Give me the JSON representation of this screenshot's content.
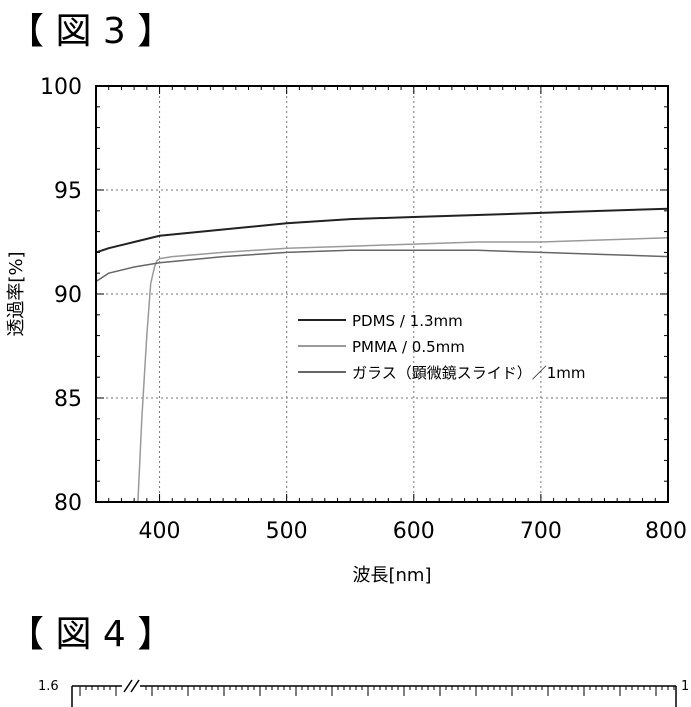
{
  "figures": [
    {
      "heading": "【 図 3 】"
    },
    {
      "heading": "【 図 4 】"
    }
  ],
  "chart_data": [
    {
      "type": "line",
      "title": "",
      "xlabel": "波長[nm]",
      "ylabel": "透過率[%]",
      "xlim": [
        350,
        800
      ],
      "ylim": [
        80,
        100
      ],
      "x_ticks": [
        400,
        500,
        600,
        700,
        800
      ],
      "y_ticks": [
        80,
        85,
        90,
        95,
        100
      ],
      "x_tick_labels": [
        "400",
        "500",
        "600",
        "700",
        "800"
      ],
      "y_tick_labels": [
        "80",
        "85",
        "90",
        "95",
        "100"
      ],
      "grid": true,
      "legend_position": "center",
      "series": [
        {
          "name": "PDMS / 1.3mm",
          "color": "#222222",
          "x": [
            350,
            360,
            380,
            400,
            450,
            500,
            550,
            600,
            650,
            700,
            750,
            800
          ],
          "y": [
            92.0,
            92.2,
            92.5,
            92.8,
            93.1,
            93.4,
            93.6,
            93.7,
            93.8,
            93.9,
            94.0,
            94.1
          ]
        },
        {
          "name": "PMMA / 0.5mm",
          "color": "#9a9a9a",
          "x": [
            383,
            386,
            390,
            393,
            396,
            398,
            400,
            410,
            450,
            500,
            550,
            600,
            650,
            700,
            750,
            800
          ],
          "y": [
            80.0,
            84.0,
            88.0,
            90.5,
            91.3,
            91.6,
            91.7,
            91.8,
            92.0,
            92.2,
            92.3,
            92.4,
            92.5,
            92.5,
            92.6,
            92.7
          ]
        },
        {
          "name": "ガラス（顕微鏡スライド）／1mm",
          "color": "#666666",
          "x": [
            350,
            360,
            380,
            400,
            450,
            500,
            550,
            600,
            650,
            700,
            750,
            800
          ],
          "y": [
            90.6,
            91.0,
            91.3,
            91.5,
            91.8,
            92.0,
            92.1,
            92.1,
            92.1,
            92.0,
            91.9,
            91.8
          ]
        }
      ]
    },
    {
      "type": "line",
      "title": "",
      "y_tick_labels": [
        "1.6"
      ],
      "right_tick_label": "1",
      "partial": true
    }
  ]
}
